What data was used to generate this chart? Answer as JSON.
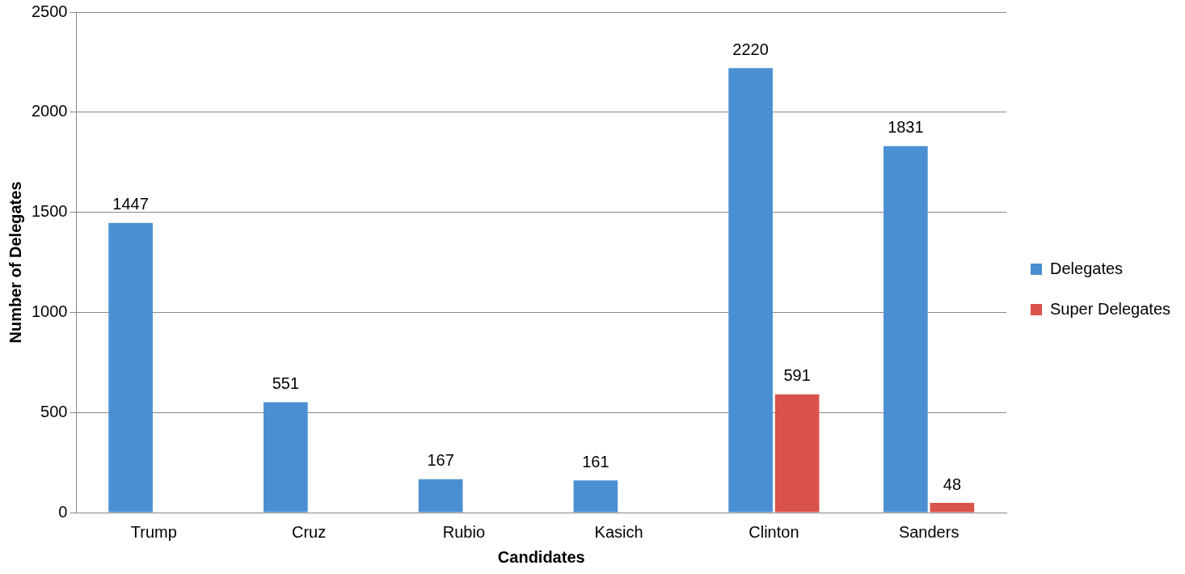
{
  "chart_data": {
    "type": "bar",
    "xlabel": "Candidates",
    "ylabel": "Number of Delegates",
    "categories": [
      "Trump",
      "Cruz",
      "Rubio",
      "Kasich",
      "Clinton",
      "Sanders"
    ],
    "series": [
      {
        "name": "Delegates",
        "color": "#4a8fd1",
        "values": [
          1447,
          551,
          167,
          161,
          2220,
          1831
        ]
      },
      {
        "name": "Super Delegates",
        "color": "#d9534a",
        "values": [
          null,
          null,
          null,
          null,
          591,
          48
        ]
      }
    ],
    "ylim": [
      0,
      2500
    ],
    "yticks": [
      0,
      500,
      1000,
      1500,
      2000,
      2500
    ],
    "grid": "y",
    "legend": "right",
    "data_labels": true
  }
}
